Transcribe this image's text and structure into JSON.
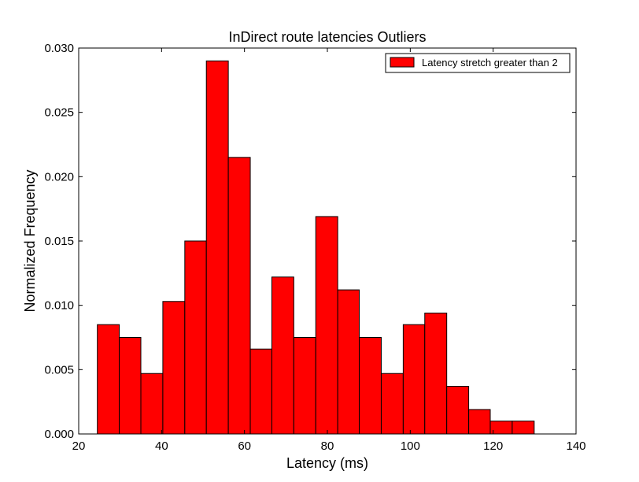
{
  "chart_data": {
    "type": "bar",
    "title": "InDirect route latencies Outliers",
    "xlabel": "Latency (ms)",
    "ylabel": "Normalized Frequency",
    "xlim": [
      20,
      140
    ],
    "ylim": [
      0,
      0.03
    ],
    "xticks": [
      "20",
      "40",
      "60",
      "80",
      "100",
      "120",
      "140"
    ],
    "yticks": [
      "0.000",
      "0.005",
      "0.010",
      "0.015",
      "0.020",
      "0.025",
      "0.030"
    ],
    "bin_edges": [
      24.5,
      29.8,
      35.0,
      40.3,
      45.6,
      50.8,
      56.1,
      61.4,
      66.6,
      71.9,
      77.2,
      82.5,
      87.7,
      93.0,
      98.3,
      103.5,
      108.8,
      114.1,
      119.3,
      124.6,
      129.9
    ],
    "values": [
      0.0085,
      0.0075,
      0.0047,
      0.0103,
      0.015,
      0.029,
      0.0215,
      0.0066,
      0.0122,
      0.0075,
      0.0169,
      0.0112,
      0.0075,
      0.0047,
      0.0085,
      0.0094,
      0.0037,
      0.0019,
      0.001,
      0.001
    ],
    "series": [
      {
        "name": "Latency stretch greater than 2",
        "color": "#ff0000"
      }
    ],
    "legend": "top-right",
    "grid": false
  }
}
